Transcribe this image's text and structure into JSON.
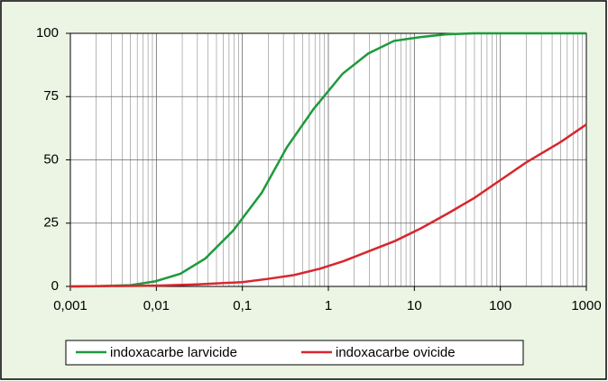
{
  "chart_data": {
    "type": "line",
    "log_x": true,
    "grid": true,
    "minor_grid": true,
    "legend": "bottom",
    "background": "#ecf5e4",
    "plot_background": "#ffffff",
    "xlim": [
      0.001,
      1000
    ],
    "xticks": [
      {
        "value": 0.001,
        "label": "0,001"
      },
      {
        "value": 0.01,
        "label": "0,01"
      },
      {
        "value": 0.1,
        "label": "0,1"
      },
      1,
      10,
      100,
      1000
    ],
    "ylim": [
      0,
      100
    ],
    "yticks": [
      0,
      25,
      50,
      75,
      100
    ],
    "series": [
      {
        "name": "indoxacarbe larvicide",
        "color": "#1e9a3c",
        "x": [
          0.001,
          0.002,
          0.005,
          0.0097,
          0.019,
          0.037,
          0.078,
          0.168,
          0.33,
          0.67,
          1.46,
          2.9,
          5.8,
          11.6,
          23.5,
          50,
          100,
          1000
        ],
        "values": [
          0,
          0.1,
          0.5,
          2,
          5,
          11,
          22,
          37,
          55,
          70,
          84,
          92,
          97,
          98.5,
          99.6,
          100,
          100,
          100
        ]
      },
      {
        "name": "indoxacarbe ovicide",
        "color": "#d8262e",
        "x": [
          0.001,
          0.01,
          0.03,
          0.1,
          0.2,
          0.4,
          0.8,
          1.5,
          3,
          6,
          12,
          25,
          50,
          100,
          200,
          500,
          1000
        ],
        "values": [
          0,
          0.3,
          0.8,
          1.7,
          3,
          4.5,
          7,
          10,
          14,
          18,
          23,
          29,
          35,
          42,
          49,
          57,
          64
        ]
      }
    ]
  }
}
